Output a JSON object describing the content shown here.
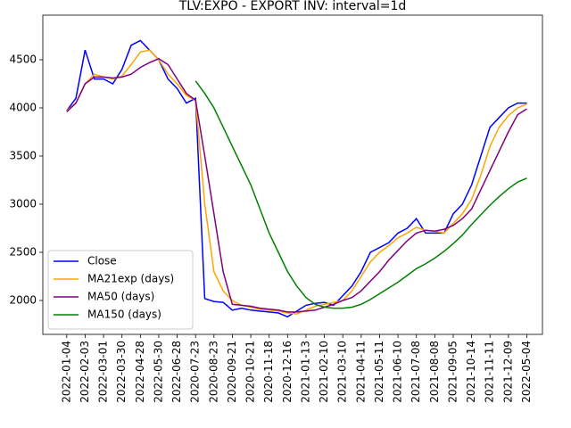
{
  "chart_data": {
    "type": "line",
    "title": "TLV:EXPO - EXPORT INV: interval=1d",
    "x": [
      0,
      1,
      2,
      3,
      4,
      5,
      6,
      7,
      8,
      9,
      10,
      11,
      12,
      13,
      14,
      15,
      16,
      17,
      18,
      19,
      20,
      21,
      22,
      23,
      24,
      25,
      26,
      27,
      28,
      29,
      30,
      31,
      32,
      33,
      34,
      35,
      36,
      37,
      38,
      39,
      40,
      41,
      42,
      43,
      44,
      45,
      46,
      47,
      48,
      49,
      50
    ],
    "xlim": [
      -2.6,
      51.7
    ],
    "xticks": [
      {
        "value": 0,
        "label": "2022-01-04"
      },
      {
        "value": 2,
        "label": "2022-02-03"
      },
      {
        "value": 4,
        "label": "2022-03-01"
      },
      {
        "value": 6,
        "label": "2022-03-30"
      },
      {
        "value": 8,
        "label": "2022-04-28"
      },
      {
        "value": 10,
        "label": "2022-05-30"
      },
      {
        "value": 12,
        "label": "2022-06-28"
      },
      {
        "value": 14,
        "label": "2020-07-23"
      },
      {
        "value": 16,
        "label": "2020-08-23"
      },
      {
        "value": 18,
        "label": "2020-09-21"
      },
      {
        "value": 20,
        "label": "2020-10-21"
      },
      {
        "value": 22,
        "label": "2020-11-18"
      },
      {
        "value": 24,
        "label": "2020-12-16"
      },
      {
        "value": 26,
        "label": "2021-01-13"
      },
      {
        "value": 28,
        "label": "2021-02-10"
      },
      {
        "value": 30,
        "label": "2021-03-10"
      },
      {
        "value": 32,
        "label": "2021-04-11"
      },
      {
        "value": 34,
        "label": "2021-05-11"
      },
      {
        "value": 36,
        "label": "2021-06-10"
      },
      {
        "value": 38,
        "label": "2021-07-08"
      },
      {
        "value": 40,
        "label": "2021-08-08"
      },
      {
        "value": 42,
        "label": "2021-09-05"
      },
      {
        "value": 44,
        "label": "2021-10-14"
      },
      {
        "value": 46,
        "label": "2021-11-11"
      },
      {
        "value": 48,
        "label": "2021-12-09"
      },
      {
        "value": 50,
        "label": "2022-05-04"
      }
    ],
    "ylim": [
      1648,
      4963
    ],
    "yticks": [
      2000,
      2500,
      3000,
      3500,
      4000,
      4500
    ],
    "legend": "lower left",
    "series": [
      {
        "name": "Close",
        "color": "#0000ff",
        "values": [
          3970,
          4100,
          4600,
          4300,
          4300,
          4250,
          4400,
          4650,
          4700,
          4600,
          4500,
          4300,
          4200,
          4050,
          4100,
          2020,
          1990,
          1980,
          1900,
          1920,
          1900,
          1890,
          1880,
          1870,
          1830,
          1890,
          1950,
          1970,
          1980,
          1950,
          2050,
          2150,
          2300,
          2500,
          2550,
          2600,
          2700,
          2750,
          2850,
          2700,
          2700,
          2700,
          2900,
          3000,
          3200,
          3500,
          3800,
          3900,
          4000,
          4050,
          4050
        ]
      },
      {
        "name": "MA21exp (days)",
        "color": "#ffa500",
        "values": [
          3970,
          4050,
          4250,
          4350,
          4320,
          4300,
          4330,
          4450,
          4580,
          4600,
          4500,
          4350,
          4250,
          4130,
          4080,
          3000,
          2300,
          2100,
          2000,
          1950,
          1930,
          1910,
          1900,
          1890,
          1870,
          1860,
          1900,
          1940,
          1960,
          1980,
          2000,
          2100,
          2250,
          2400,
          2500,
          2570,
          2650,
          2700,
          2760,
          2730,
          2720,
          2700,
          2800,
          2900,
          3050,
          3300,
          3600,
          3800,
          3920,
          4000,
          4040
        ]
      },
      {
        "name": "MA50 (days)",
        "color": "#800080",
        "values": [
          3960,
          4050,
          4250,
          4320,
          4320,
          4310,
          4320,
          4350,
          4420,
          4470,
          4510,
          4450,
          4300,
          4150,
          4080,
          3500,
          2900,
          2300,
          1960,
          1950,
          1940,
          1920,
          1910,
          1900,
          1880,
          1880,
          1890,
          1900,
          1930,
          1960,
          2000,
          2030,
          2100,
          2200,
          2300,
          2420,
          2520,
          2620,
          2700,
          2730,
          2720,
          2740,
          2780,
          2850,
          2950,
          3150,
          3350,
          3550,
          3750,
          3930,
          3990
        ]
      },
      {
        "name": "MA150 (days)",
        "color": "#008000",
        "values": [
          null,
          null,
          null,
          null,
          null,
          null,
          null,
          null,
          null,
          null,
          null,
          null,
          null,
          null,
          4280,
          4150,
          4000,
          3800,
          3600,
          3400,
          3200,
          2950,
          2700,
          2500,
          2300,
          2150,
          2030,
          1960,
          1930,
          1920,
          1920,
          1930,
          1960,
          2010,
          2070,
          2130,
          2190,
          2260,
          2330,
          2380,
          2440,
          2510,
          2590,
          2680,
          2790,
          2890,
          2990,
          3080,
          3160,
          3230,
          3270
        ]
      }
    ]
  }
}
